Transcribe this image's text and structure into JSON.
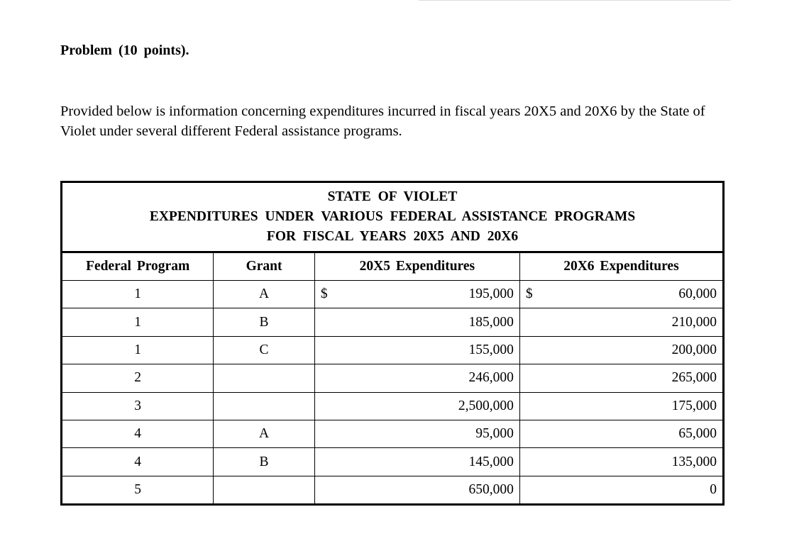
{
  "header": {
    "title": "Problem (10 points)."
  },
  "intro": "Provided below is information concerning expenditures incurred in fiscal years 20X5 and 20X6 by the State of Violet under several different Federal assistance programs.",
  "table": {
    "title_lines": [
      "STATE OF VIOLET",
      "EXPENDITURES UNDER VARIOUS FEDERAL ASSISTANCE PROGRAMS",
      "FOR FISCAL YEARS 20X5 AND 20X6"
    ],
    "columns": [
      "Federal Program",
      "Grant",
      "20X5 Expenditures",
      "20X6 Expenditures"
    ],
    "currency": "$",
    "rows": [
      [
        "1",
        "A",
        "195,000",
        "60,000"
      ],
      [
        "1",
        "B",
        "185,000",
        "210,000"
      ],
      [
        "1",
        "C",
        "155,000",
        "200,000"
      ],
      [
        "2",
        null,
        "246,000",
        "265,000"
      ],
      [
        "3",
        null,
        "2,500,000",
        "175,000"
      ],
      [
        "4",
        "A",
        "95,000",
        "65,000"
      ],
      [
        "4",
        "B",
        "145,000",
        "135,000"
      ],
      [
        "5",
        null,
        "650,000",
        "0"
      ]
    ]
  }
}
